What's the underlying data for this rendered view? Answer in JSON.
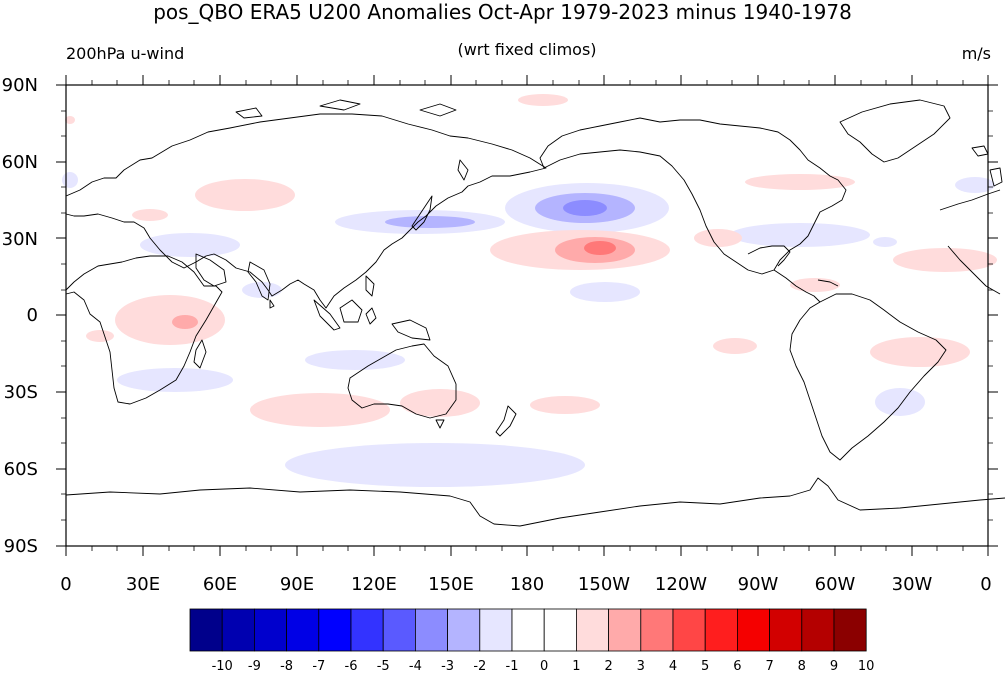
{
  "title": "pos_QBO ERA5 U200 Anomalies Oct-Apr 1979-2023 minus 1940-1978",
  "left_string": "200hPa u-wind",
  "center_string": "(wrt fixed climos)",
  "right_string": "m/s",
  "lat_labels": [
    "90N",
    "60N",
    "30N",
    "0",
    "30S",
    "60S",
    "90S"
  ],
  "lon_labels": [
    "0",
    "30E",
    "60E",
    "90E",
    "120E",
    "150E",
    "180",
    "150W",
    "120W",
    "90W",
    "60W",
    "30W",
    "0"
  ],
  "colorbar": {
    "labels": [
      "-10",
      "-9",
      "-8",
      "-7",
      "-6",
      "-5",
      "-4",
      "-3",
      "-2",
      "-1",
      "0",
      "1",
      "2",
      "3",
      "4",
      "5",
      "6",
      "7",
      "8",
      "9",
      "10"
    ],
    "colors": [
      "#00008b",
      "#0000b0",
      "#0000cd",
      "#0000e6",
      "#0000ff",
      "#3333ff",
      "#5a5aff",
      "#8c8cff",
      "#b4b4ff",
      "#e6e6ff",
      "#ffffff",
      "#ffffff",
      "#ffdcdc",
      "#ffaaaa",
      "#ff7878",
      "#ff4646",
      "#ff1e1e",
      "#f50000",
      "#d20000",
      "#b40000",
      "#8b0000"
    ]
  }
}
